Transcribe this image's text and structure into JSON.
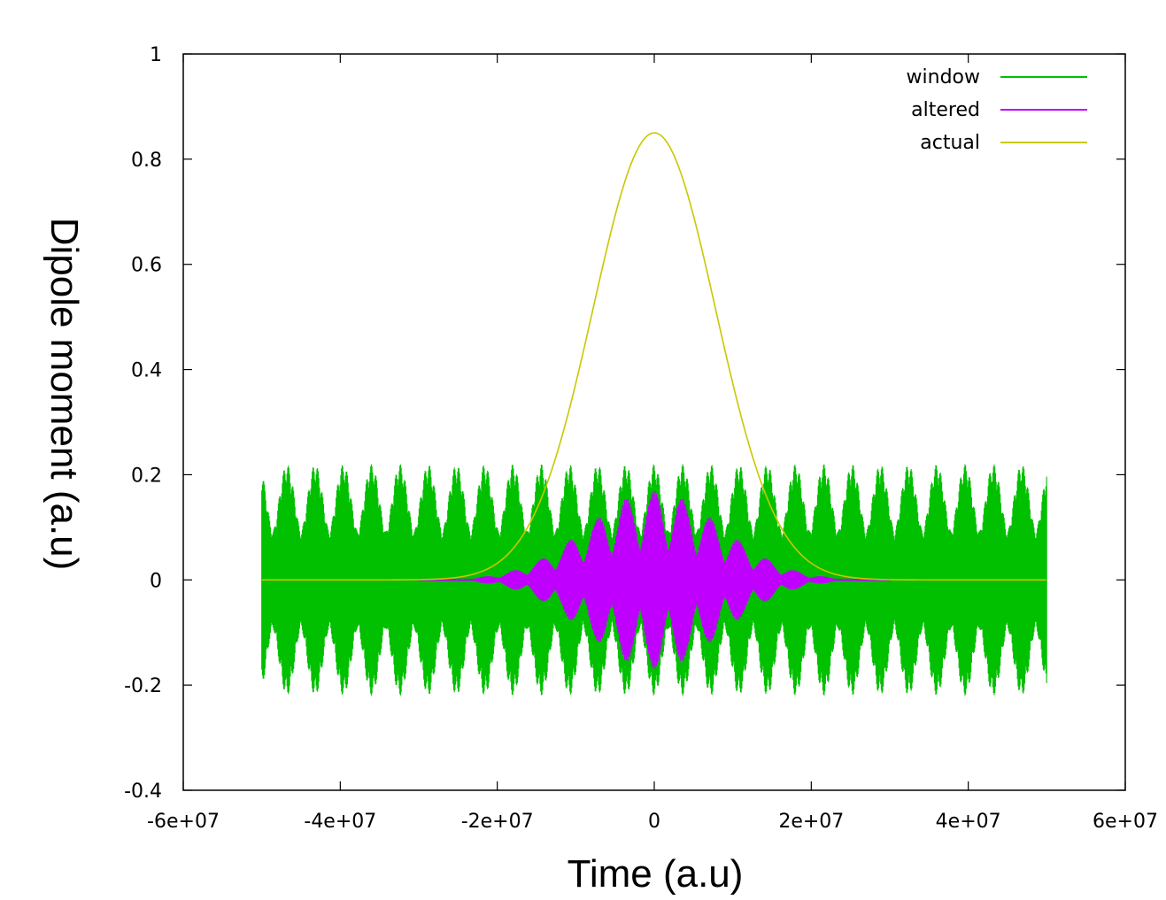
{
  "chart_data": {
    "type": "line",
    "xlabel": "Time (a.u)",
    "ylabel": "Dipole moment (a.u)",
    "xlim": [
      -60000000,
      60000000
    ],
    "ylim": [
      -0.4,
      1.0
    ],
    "xticks": [
      -60000000,
      -40000000,
      -20000000,
      0,
      20000000,
      40000000,
      60000000
    ],
    "xtick_labels": [
      "-6e+07",
      "-4e+07",
      "-2e+07",
      "0",
      "2e+07",
      "4e+07",
      "6e+07"
    ],
    "yticks": [
      -0.4,
      -0.2,
      0,
      0.2,
      0.4,
      0.6,
      0.8,
      1.0
    ],
    "ytick_labels": [
      "-0.4",
      "-0.2",
      "0",
      "0.2",
      "0.4",
      "0.6",
      "0.8",
      "1"
    ],
    "grid": false,
    "legend_position": "top-right",
    "series": [
      {
        "name": "window",
        "color": "#00c000",
        "x_range": [
          -50000000,
          50000000
        ],
        "amplitude": 0.22,
        "envelope": "constant with periodic beating",
        "beat_period": 3600000,
        "description": "rapidly oscillating signal"
      },
      {
        "name": "altered",
        "color": "#c000ff",
        "x_range": [
          -30000000,
          30000000
        ],
        "peak_amplitude": 0.17,
        "envelope": "gaussian",
        "envelope_sigma": 8500000,
        "beat_period": 3600000
      },
      {
        "name": "actual",
        "color": "#c8c800",
        "x_range": [
          -50000000,
          50000000
        ],
        "peak": 0.85,
        "center": 0,
        "sigma": 7800000,
        "shape": "gaussian"
      }
    ]
  }
}
